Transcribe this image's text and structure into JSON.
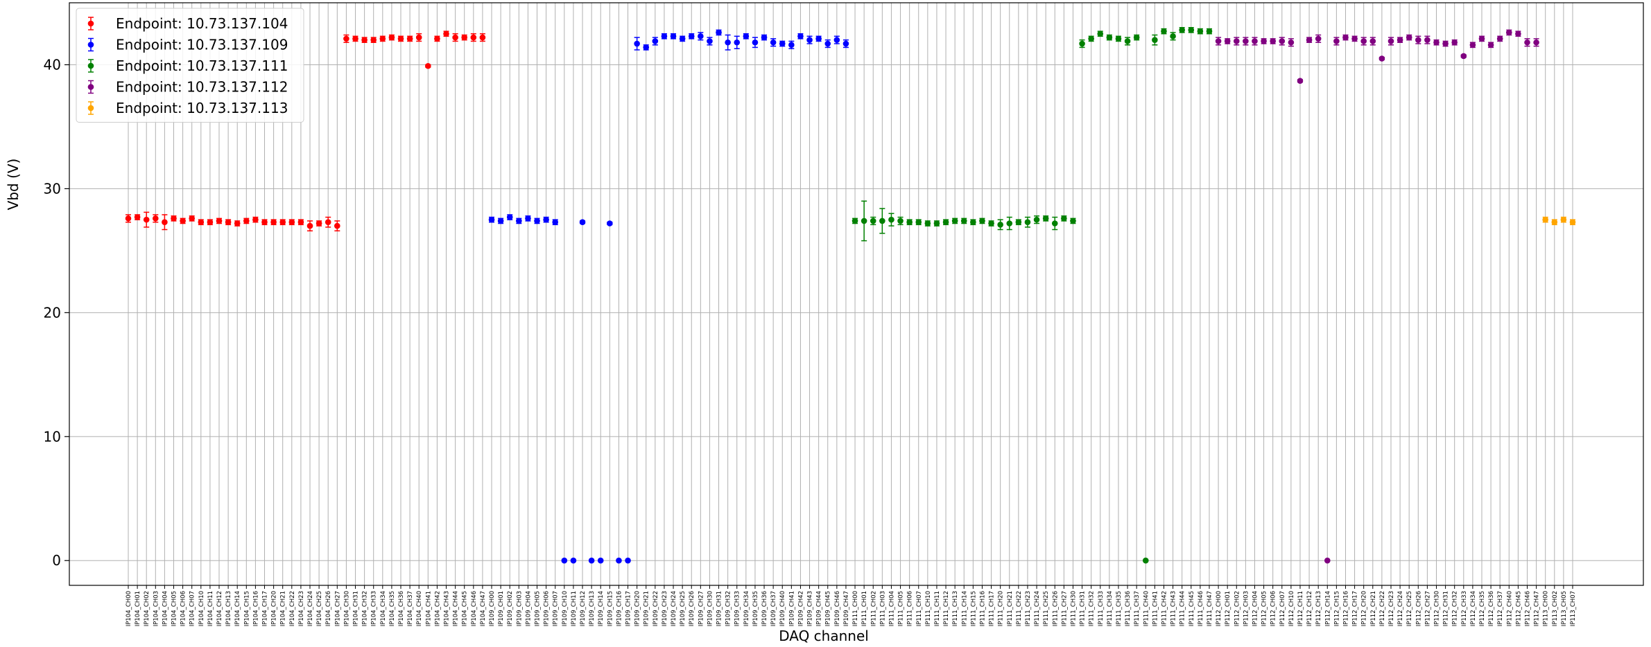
{
  "chart_data": {
    "type": "scatter",
    "xlabel": "DAQ channel",
    "ylabel": "Vbd (V)",
    "ylim": [
      -2,
      45
    ],
    "yticks": [
      0,
      10,
      20,
      30,
      40
    ],
    "grid": true,
    "legend_position": "top-left",
    "series": [
      {
        "name": "Endpoint: 10.73.137.104",
        "color": "#ff0000",
        "points": [
          {
            "x": "IP104_CH00",
            "y": 27.6,
            "err": 0.3
          },
          {
            "x": "IP104_CH01",
            "y": 27.7,
            "err": 0.2
          },
          {
            "x": "IP104_CH02",
            "y": 27.5,
            "err": 0.6
          },
          {
            "x": "IP104_CH03",
            "y": 27.6,
            "err": 0.3
          },
          {
            "x": "IP104_CH04",
            "y": 27.3,
            "err": 0.6
          },
          {
            "x": "IP104_CH05",
            "y": 27.6,
            "err": 0.2
          },
          {
            "x": "IP104_CH06",
            "y": 27.4,
            "err": 0.2
          },
          {
            "x": "IP104_CH07",
            "y": 27.6,
            "err": 0.2
          },
          {
            "x": "IP104_CH10",
            "y": 27.3,
            "err": 0.2
          },
          {
            "x": "IP104_CH11",
            "y": 27.3,
            "err": 0.2
          },
          {
            "x": "IP104_CH12",
            "y": 27.4,
            "err": 0.2
          },
          {
            "x": "IP104_CH13",
            "y": 27.3,
            "err": 0.2
          },
          {
            "x": "IP104_CH14",
            "y": 27.2,
            "err": 0.2
          },
          {
            "x": "IP104_CH15",
            "y": 27.4,
            "err": 0.2
          },
          {
            "x": "IP104_CH16",
            "y": 27.5,
            "err": 0.2
          },
          {
            "x": "IP104_CH17",
            "y": 27.3,
            "err": 0.2
          },
          {
            "x": "IP104_CH20",
            "y": 27.3,
            "err": 0.2
          },
          {
            "x": "IP104_CH21",
            "y": 27.3,
            "err": 0.2
          },
          {
            "x": "IP104_CH22",
            "y": 27.3,
            "err": 0.2
          },
          {
            "x": "IP104_CH23",
            "y": 27.3,
            "err": 0.2
          },
          {
            "x": "IP104_CH24",
            "y": 27.0,
            "err": 0.4
          },
          {
            "x": "IP104_CH25",
            "y": 27.2,
            "err": 0.2
          },
          {
            "x": "IP104_CH26",
            "y": 27.3,
            "err": 0.4
          },
          {
            "x": "IP104_CH27",
            "y": 27.0,
            "err": 0.4
          },
          {
            "x": "IP104_CH30",
            "y": 42.1,
            "err": 0.3
          },
          {
            "x": "IP104_CH31",
            "y": 42.1,
            "err": 0.2
          },
          {
            "x": "IP104_CH32",
            "y": 42.0,
            "err": 0.2
          },
          {
            "x": "IP104_CH33",
            "y": 42.0,
            "err": 0.2
          },
          {
            "x": "IP104_CH34",
            "y": 42.1,
            "err": 0.2
          },
          {
            "x": "IP104_CH35",
            "y": 42.2,
            "err": 0.2
          },
          {
            "x": "IP104_CH36",
            "y": 42.1,
            "err": 0.2
          },
          {
            "x": "IP104_CH37",
            "y": 42.1,
            "err": 0.2
          },
          {
            "x": "IP104_CH40",
            "y": 42.2,
            "err": 0.3
          },
          {
            "x": "IP104_CH41",
            "y": 39.9,
            "err": 0.1
          },
          {
            "x": "IP104_CH42",
            "y": 42.1,
            "err": 0.2
          },
          {
            "x": "IP104_CH43",
            "y": 42.5,
            "err": 0.2
          },
          {
            "x": "IP104_CH44",
            "y": 42.2,
            "err": 0.3
          },
          {
            "x": "IP104_CH45",
            "y": 42.2,
            "err": 0.2
          },
          {
            "x": "IP104_CH46",
            "y": 42.2,
            "err": 0.3
          },
          {
            "x": "IP104_CH47",
            "y": 42.2,
            "err": 0.3
          }
        ]
      },
      {
        "name": "Endpoint: 10.73.137.109",
        "color": "#0000ff",
        "points": [
          {
            "x": "IP109_CH00",
            "y": 27.5,
            "err": 0.2
          },
          {
            "x": "IP109_CH01",
            "y": 27.4,
            "err": 0.2
          },
          {
            "x": "IP109_CH02",
            "y": 27.7,
            "err": 0.2
          },
          {
            "x": "IP109_CH03",
            "y": 27.4,
            "err": 0.2
          },
          {
            "x": "IP109_CH04",
            "y": 27.6,
            "err": 0.2
          },
          {
            "x": "IP109_CH05",
            "y": 27.4,
            "err": 0.2
          },
          {
            "x": "IP109_CH06",
            "y": 27.5,
            "err": 0.2
          },
          {
            "x": "IP109_CH07",
            "y": 27.3,
            "err": 0.2
          },
          {
            "x": "IP109_CH10",
            "y": 0.0,
            "err": 0.0
          },
          {
            "x": "IP109_CH11",
            "y": 0.0,
            "err": 0.0
          },
          {
            "x": "IP109_CH12",
            "y": 27.3,
            "err": 0.1
          },
          {
            "x": "IP109_CH13",
            "y": 0.0,
            "err": 0.0
          },
          {
            "x": "IP109_CH14",
            "y": 0.0,
            "err": 0.0
          },
          {
            "x": "IP109_CH15",
            "y": 27.2,
            "err": 0.1
          },
          {
            "x": "IP109_CH16",
            "y": 0.0,
            "err": 0.0
          },
          {
            "x": "IP109_CH17",
            "y": 0.0,
            "err": 0.0
          },
          {
            "x": "IP109_CH20",
            "y": 41.7,
            "err": 0.5
          },
          {
            "x": "IP109_CH21",
            "y": 41.4,
            "err": 0.2
          },
          {
            "x": "IP109_CH22",
            "y": 41.9,
            "err": 0.3
          },
          {
            "x": "IP109_CH23",
            "y": 42.3,
            "err": 0.2
          },
          {
            "x": "IP109_CH24",
            "y": 42.3,
            "err": 0.2
          },
          {
            "x": "IP109_CH25",
            "y": 42.1,
            "err": 0.2
          },
          {
            "x": "IP109_CH26",
            "y": 42.3,
            "err": 0.2
          },
          {
            "x": "IP109_CH27",
            "y": 42.3,
            "err": 0.3
          },
          {
            "x": "IP109_CH30",
            "y": 41.9,
            "err": 0.3
          },
          {
            "x": "IP109_CH31",
            "y": 42.6,
            "err": 0.2
          },
          {
            "x": "IP109_CH32",
            "y": 41.8,
            "err": 0.6
          },
          {
            "x": "IP109_CH33",
            "y": 41.8,
            "err": 0.5
          },
          {
            "x": "IP109_CH34",
            "y": 42.3,
            "err": 0.2
          },
          {
            "x": "IP109_CH35",
            "y": 41.8,
            "err": 0.4
          },
          {
            "x": "IP109_CH36",
            "y": 42.2,
            "err": 0.2
          },
          {
            "x": "IP109_CH37",
            "y": 41.8,
            "err": 0.3
          },
          {
            "x": "IP109_CH40",
            "y": 41.7,
            "err": 0.2
          },
          {
            "x": "IP109_CH41",
            "y": 41.6,
            "err": 0.3
          },
          {
            "x": "IP109_CH42",
            "y": 42.3,
            "err": 0.2
          },
          {
            "x": "IP109_CH43",
            "y": 42.0,
            "err": 0.3
          },
          {
            "x": "IP109_CH44",
            "y": 42.1,
            "err": 0.2
          },
          {
            "x": "IP109_CH45",
            "y": 41.7,
            "err": 0.3
          },
          {
            "x": "IP109_CH46",
            "y": 42.0,
            "err": 0.3
          },
          {
            "x": "IP109_CH47",
            "y": 41.7,
            "err": 0.3
          }
        ]
      },
      {
        "name": "Endpoint: 10.73.137.111",
        "color": "#008000",
        "points": [
          {
            "x": "IP111_CH00",
            "y": 27.4,
            "err": 0.2
          },
          {
            "x": "IP111_CH01",
            "y": 27.4,
            "err": 1.6
          },
          {
            "x": "IP111_CH02",
            "y": 27.4,
            "err": 0.3
          },
          {
            "x": "IP111_CH03",
            "y": 27.4,
            "err": 1.0
          },
          {
            "x": "IP111_CH04",
            "y": 27.5,
            "err": 0.5
          },
          {
            "x": "IP111_CH05",
            "y": 27.4,
            "err": 0.3
          },
          {
            "x": "IP111_CH06",
            "y": 27.3,
            "err": 0.2
          },
          {
            "x": "IP111_CH07",
            "y": 27.3,
            "err": 0.2
          },
          {
            "x": "IP111_CH10",
            "y": 27.2,
            "err": 0.2
          },
          {
            "x": "IP111_CH11",
            "y": 27.2,
            "err": 0.2
          },
          {
            "x": "IP111_CH12",
            "y": 27.3,
            "err": 0.2
          },
          {
            "x": "IP111_CH13",
            "y": 27.4,
            "err": 0.2
          },
          {
            "x": "IP111_CH14",
            "y": 27.4,
            "err": 0.2
          },
          {
            "x": "IP111_CH15",
            "y": 27.3,
            "err": 0.2
          },
          {
            "x": "IP111_CH16",
            "y": 27.4,
            "err": 0.2
          },
          {
            "x": "IP111_CH17",
            "y": 27.2,
            "err": 0.2
          },
          {
            "x": "IP111_CH20",
            "y": 27.1,
            "err": 0.4
          },
          {
            "x": "IP111_CH21",
            "y": 27.2,
            "err": 0.5
          },
          {
            "x": "IP111_CH22",
            "y": 27.3,
            "err": 0.2
          },
          {
            "x": "IP111_CH23",
            "y": 27.3,
            "err": 0.4
          },
          {
            "x": "IP111_CH24",
            "y": 27.5,
            "err": 0.3
          },
          {
            "x": "IP111_CH25",
            "y": 27.6,
            "err": 0.2
          },
          {
            "x": "IP111_CH26",
            "y": 27.2,
            "err": 0.5
          },
          {
            "x": "IP111_CH27",
            "y": 27.6,
            "err": 0.2
          },
          {
            "x": "IP111_CH30",
            "y": 27.4,
            "err": 0.2
          },
          {
            "x": "IP111_CH31",
            "y": 41.7,
            "err": 0.3
          },
          {
            "x": "IP111_CH32",
            "y": 42.1,
            "err": 0.2
          },
          {
            "x": "IP111_CH33",
            "y": 42.5,
            "err": 0.2
          },
          {
            "x": "IP111_CH34",
            "y": 42.2,
            "err": 0.2
          },
          {
            "x": "IP111_CH35",
            "y": 42.1,
            "err": 0.2
          },
          {
            "x": "IP111_CH36",
            "y": 41.9,
            "err": 0.3
          },
          {
            "x": "IP111_CH37",
            "y": 42.2,
            "err": 0.2
          },
          {
            "x": "IP111_CH40",
            "y": 0.0,
            "err": 0.0
          },
          {
            "x": "IP111_CH41",
            "y": 42.0,
            "err": 0.4
          },
          {
            "x": "IP111_CH42",
            "y": 42.7,
            "err": 0.2
          },
          {
            "x": "IP111_CH43",
            "y": 42.3,
            "err": 0.3
          },
          {
            "x": "IP111_CH44",
            "y": 42.8,
            "err": 0.2
          },
          {
            "x": "IP111_CH45",
            "y": 42.8,
            "err": 0.2
          },
          {
            "x": "IP111_CH46",
            "y": 42.7,
            "err": 0.2
          },
          {
            "x": "IP111_CH47",
            "y": 42.7,
            "err": 0.2
          }
        ]
      },
      {
        "name": "Endpoint: 10.73.137.112",
        "color": "#800080",
        "points": [
          {
            "x": "IP112_CH00",
            "y": 41.9,
            "err": 0.3
          },
          {
            "x": "IP112_CH01",
            "y": 41.9,
            "err": 0.2
          },
          {
            "x": "IP112_CH02",
            "y": 41.9,
            "err": 0.3
          },
          {
            "x": "IP112_CH03",
            "y": 41.9,
            "err": 0.3
          },
          {
            "x": "IP112_CH04",
            "y": 41.9,
            "err": 0.3
          },
          {
            "x": "IP112_CH05",
            "y": 41.9,
            "err": 0.2
          },
          {
            "x": "IP112_CH06",
            "y": 41.9,
            "err": 0.2
          },
          {
            "x": "IP112_CH07",
            "y": 41.9,
            "err": 0.3
          },
          {
            "x": "IP112_CH10",
            "y": 41.8,
            "err": 0.3
          },
          {
            "x": "IP112_CH11",
            "y": 38.7,
            "err": 0.1
          },
          {
            "x": "IP112_CH12",
            "y": 42.0,
            "err": 0.2
          },
          {
            "x": "IP112_CH13",
            "y": 42.1,
            "err": 0.3
          },
          {
            "x": "IP112_CH14",
            "y": 0.0,
            "err": 0.0
          },
          {
            "x": "IP112_CH15",
            "y": 41.9,
            "err": 0.3
          },
          {
            "x": "IP112_CH16",
            "y": 42.2,
            "err": 0.2
          },
          {
            "x": "IP112_CH17",
            "y": 42.1,
            "err": 0.2
          },
          {
            "x": "IP112_CH20",
            "y": 41.9,
            "err": 0.3
          },
          {
            "x": "IP112_CH21",
            "y": 41.9,
            "err": 0.3
          },
          {
            "x": "IP112_CH22",
            "y": 40.5,
            "err": 0.1
          },
          {
            "x": "IP112_CH23",
            "y": 41.9,
            "err": 0.3
          },
          {
            "x": "IP112_CH24",
            "y": 42.0,
            "err": 0.2
          },
          {
            "x": "IP112_CH25",
            "y": 42.2,
            "err": 0.2
          },
          {
            "x": "IP112_CH26",
            "y": 42.0,
            "err": 0.3
          },
          {
            "x": "IP112_CH27",
            "y": 42.0,
            "err": 0.3
          },
          {
            "x": "IP112_CH30",
            "y": 41.8,
            "err": 0.2
          },
          {
            "x": "IP112_CH31",
            "y": 41.7,
            "err": 0.2
          },
          {
            "x": "IP112_CH32",
            "y": 41.8,
            "err": 0.2
          },
          {
            "x": "IP112_CH33",
            "y": 40.7,
            "err": 0.1
          },
          {
            "x": "IP112_CH34",
            "y": 41.6,
            "err": 0.2
          },
          {
            "x": "IP112_CH35",
            "y": 42.1,
            "err": 0.2
          },
          {
            "x": "IP112_CH36",
            "y": 41.6,
            "err": 0.2
          },
          {
            "x": "IP112_CH37",
            "y": 42.1,
            "err": 0.2
          },
          {
            "x": "IP112_CH40",
            "y": 42.6,
            "err": 0.2
          },
          {
            "x": "IP112_CH45",
            "y": 42.5,
            "err": 0.2
          },
          {
            "x": "IP112_CH46",
            "y": 41.8,
            "err": 0.3
          },
          {
            "x": "IP112_CH47",
            "y": 41.8,
            "err": 0.3
          }
        ]
      },
      {
        "name": "Endpoint: 10.73.137.113",
        "color": "#ffa500",
        "points": [
          {
            "x": "IP113_CH00",
            "y": 27.5,
            "err": 0.2
          },
          {
            "x": "IP113_CH02",
            "y": 27.3,
            "err": 0.2
          },
          {
            "x": "IP113_CH05",
            "y": 27.5,
            "err": 0.2
          },
          {
            "x": "IP113_CH07",
            "y": 27.3,
            "err": 0.2
          }
        ]
      }
    ]
  }
}
